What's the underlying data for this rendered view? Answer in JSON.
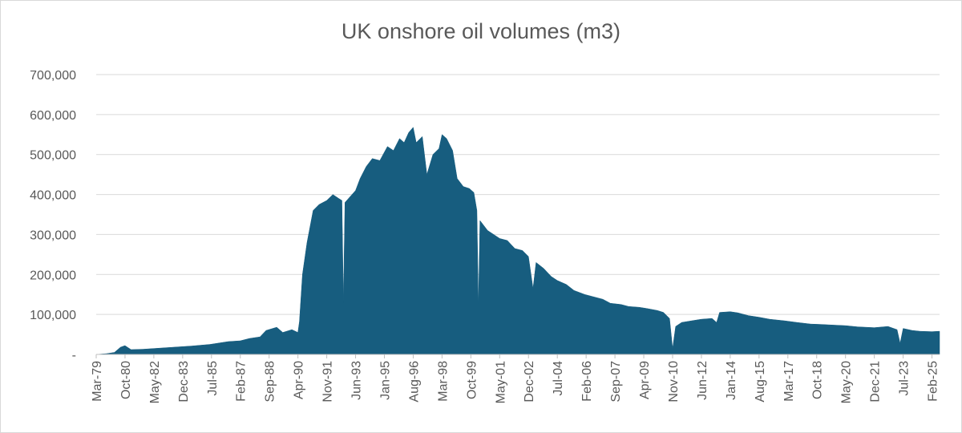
{
  "chart_data": {
    "type": "area",
    "title": "UK onshore oil volumes (m3)",
    "xlabel": "",
    "ylabel": "",
    "ylim": [
      0,
      700000
    ],
    "y_ticks": [
      {
        "value": 0,
        "label": "-"
      },
      {
        "value": 100000,
        "label": "100,000"
      },
      {
        "value": 200000,
        "label": "200,000"
      },
      {
        "value": 300000,
        "label": "300,000"
      },
      {
        "value": 400000,
        "label": "400,000"
      },
      {
        "value": 500000,
        "label": "500,000"
      },
      {
        "value": 600000,
        "label": "600,000"
      },
      {
        "value": 700000,
        "label": "700,000"
      }
    ],
    "x_range": [
      "1979-03",
      "2025-07"
    ],
    "x_ticks": [
      "Mar-79",
      "Oct-80",
      "May-82",
      "Dec-83",
      "Jul-85",
      "Feb-87",
      "Sep-88",
      "Apr-90",
      "Nov-91",
      "Jun-93",
      "Jan-95",
      "Aug-96",
      "Mar-98",
      "Oct-99",
      "May-01",
      "Dec-02",
      "Jul-04",
      "Feb-06",
      "Sep-07",
      "Apr-09",
      "Nov-10",
      "Jun-12",
      "Jan-14",
      "Aug-15",
      "Mar-17",
      "Oct-18",
      "May-20",
      "Dec-21",
      "Jul-23",
      "Feb-25"
    ],
    "grid": true,
    "legend": "none",
    "color": "#175d7f",
    "series": [
      {
        "name": "",
        "points": [
          [
            "1979-03",
            0
          ],
          [
            "1979-10",
            2000
          ],
          [
            "1980-03",
            5000
          ],
          [
            "1980-07",
            18000
          ],
          [
            "1980-10",
            22000
          ],
          [
            "1981-02",
            12000
          ],
          [
            "1981-10",
            13000
          ],
          [
            "1982-06",
            15000
          ],
          [
            "1983-06",
            18000
          ],
          [
            "1984-06",
            21000
          ],
          [
            "1985-06",
            25000
          ],
          [
            "1986-06",
            32000
          ],
          [
            "1987-02",
            34000
          ],
          [
            "1987-08",
            40000
          ],
          [
            "1988-03",
            44000
          ],
          [
            "1988-07",
            60000
          ],
          [
            "1989-02",
            68000
          ],
          [
            "1989-06",
            55000
          ],
          [
            "1989-12",
            62000
          ],
          [
            "1990-04",
            55000
          ],
          [
            "1990-05",
            82000
          ],
          [
            "1990-07",
            200000
          ],
          [
            "1990-10",
            280000
          ],
          [
            "1991-02",
            360000
          ],
          [
            "1991-06",
            375000
          ],
          [
            "1991-11",
            385000
          ],
          [
            "1992-03",
            400000
          ],
          [
            "1992-07",
            390000
          ],
          [
            "1992-09",
            385000
          ],
          [
            "1992-10",
            130000
          ],
          [
            "1992-11",
            380000
          ],
          [
            "1993-06",
            410000
          ],
          [
            "1993-09",
            440000
          ],
          [
            "1994-01",
            470000
          ],
          [
            "1994-05",
            490000
          ],
          [
            "1994-10",
            485000
          ],
          [
            "1995-03",
            520000
          ],
          [
            "1995-07",
            510000
          ],
          [
            "1995-11",
            540000
          ],
          [
            "1996-02",
            530000
          ],
          [
            "1996-05",
            555000
          ],
          [
            "1996-08",
            568000
          ],
          [
            "1996-10",
            530000
          ],
          [
            "1997-02",
            545000
          ],
          [
            "1997-05",
            450000
          ],
          [
            "1997-09",
            500000
          ],
          [
            "1998-01",
            515000
          ],
          [
            "1998-03",
            550000
          ],
          [
            "1998-06",
            540000
          ],
          [
            "1998-10",
            510000
          ],
          [
            "1999-01",
            440000
          ],
          [
            "1999-05",
            420000
          ],
          [
            "1999-09",
            415000
          ],
          [
            "1999-12",
            405000
          ],
          [
            "2000-02",
            360000
          ],
          [
            "2000-03",
            120000
          ],
          [
            "2000-04",
            335000
          ],
          [
            "2000-09",
            310000
          ],
          [
            "2001-05",
            290000
          ],
          [
            "2001-10",
            285000
          ],
          [
            "2002-03",
            265000
          ],
          [
            "2002-08",
            260000
          ],
          [
            "2002-12",
            245000
          ],
          [
            "2003-03",
            165000
          ],
          [
            "2003-05",
            230000
          ],
          [
            "2003-10",
            215000
          ],
          [
            "2004-03",
            195000
          ],
          [
            "2004-07",
            185000
          ],
          [
            "2005-01",
            175000
          ],
          [
            "2005-06",
            160000
          ],
          [
            "2006-01",
            150000
          ],
          [
            "2006-06",
            145000
          ],
          [
            "2007-01",
            138000
          ],
          [
            "2007-06",
            128000
          ],
          [
            "2008-01",
            125000
          ],
          [
            "2008-06",
            120000
          ],
          [
            "2009-01",
            118000
          ],
          [
            "2009-06",
            115000
          ],
          [
            "2010-01",
            110000
          ],
          [
            "2010-05",
            105000
          ],
          [
            "2010-09",
            90000
          ],
          [
            "2010-11",
            15000
          ],
          [
            "2011-01",
            70000
          ],
          [
            "2011-05",
            80000
          ],
          [
            "2012-01",
            85000
          ],
          [
            "2012-06",
            88000
          ],
          [
            "2013-01",
            90000
          ],
          [
            "2013-04",
            80000
          ],
          [
            "2013-06",
            105000
          ],
          [
            "2014-01",
            107000
          ],
          [
            "2014-06",
            104000
          ],
          [
            "2015-01",
            97000
          ],
          [
            "2015-08",
            93000
          ],
          [
            "2016-03",
            88000
          ],
          [
            "2017-01",
            84000
          ],
          [
            "2017-09",
            80000
          ],
          [
            "2018-06",
            76000
          ],
          [
            "2019-01",
            75000
          ],
          [
            "2019-06",
            74000
          ],
          [
            "2020-05",
            72000
          ],
          [
            "2021-01",
            69000
          ],
          [
            "2021-12",
            67000
          ],
          [
            "2022-09",
            70000
          ],
          [
            "2023-03",
            62000
          ],
          [
            "2023-05",
            28000
          ],
          [
            "2023-07",
            65000
          ],
          [
            "2024-01",
            60000
          ],
          [
            "2024-06",
            58000
          ],
          [
            "2025-02",
            57000
          ],
          [
            "2025-07",
            58000
          ]
        ]
      }
    ]
  }
}
